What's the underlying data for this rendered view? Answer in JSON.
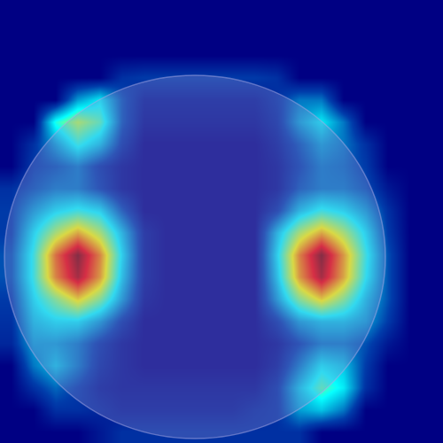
{
  "chart_data": {
    "type": "heatmap",
    "tick_labels": false,
    "z": [
      [
        0,
        0,
        0,
        0,
        0,
        0,
        0,
        0,
        0,
        0,
        0,
        0,
        0,
        0,
        0,
        0,
        0,
        0,
        0,
        0
      ],
      [
        0,
        0,
        0,
        0,
        0,
        0,
        0,
        0,
        0,
        0,
        0,
        0,
        0,
        0,
        0,
        0,
        0,
        0,
        0,
        0
      ],
      [
        0,
        0,
        0,
        0,
        0,
        0,
        0,
        0,
        0,
        0,
        0,
        0,
        0,
        0,
        0,
        0,
        0,
        0,
        0,
        0
      ],
      [
        0,
        0,
        0,
        0,
        0,
        0.1,
        0.12,
        0.12,
        0.12,
        0.12,
        0.12,
        0.12,
        0.1,
        0,
        0,
        0,
        0,
        0,
        0,
        0
      ],
      [
        0,
        0,
        0,
        0.25,
        0.35,
        0.15,
        0.05,
        0.05,
        0.05,
        0.05,
        0.05,
        0.05,
        0.1,
        0.2,
        0.2,
        0,
        0,
        0,
        0,
        0
      ],
      [
        0,
        0,
        0.4,
        0.55,
        0.45,
        0.15,
        0.03,
        0.03,
        0.03,
        0.03,
        0.03,
        0.03,
        0.08,
        0.25,
        0.35,
        0.2,
        0,
        0,
        0,
        0
      ],
      [
        0,
        0.1,
        0.25,
        0.4,
        0.3,
        0.1,
        0,
        0,
        0,
        0,
        0,
        0,
        0.05,
        0.15,
        0.25,
        0.2,
        0.1,
        0,
        0,
        0
      ],
      [
        0,
        0.12,
        0.15,
        0.2,
        0.1,
        0.03,
        0,
        0,
        0,
        0,
        0,
        0,
        0.03,
        0.12,
        0.2,
        0.18,
        0.12,
        0,
        0,
        0
      ],
      [
        0.1,
        0.15,
        0.2,
        0.2,
        0.12,
        0.03,
        0,
        0,
        0,
        0,
        0,
        0,
        0.03,
        0.15,
        0.2,
        0.2,
        0.15,
        0.05,
        0,
        0
      ],
      [
        0.12,
        0.25,
        0.35,
        0.4,
        0.35,
        0.15,
        0,
        0,
        0,
        0,
        0,
        0,
        0.1,
        0.3,
        0.4,
        0.35,
        0.25,
        0.1,
        0,
        0
      ],
      [
        0.12,
        0.35,
        0.55,
        0.7,
        0.55,
        0.3,
        0.05,
        0,
        0,
        0,
        0,
        0,
        0.3,
        0.55,
        0.7,
        0.55,
        0.35,
        0.12,
        0,
        0
      ],
      [
        0.15,
        0.4,
        0.78,
        1.0,
        0.75,
        0.35,
        0.05,
        0,
        0,
        0,
        0,
        0,
        0.35,
        0.75,
        1.0,
        0.72,
        0.4,
        0.15,
        0,
        0
      ],
      [
        0.15,
        0.4,
        0.75,
        0.95,
        0.72,
        0.32,
        0.05,
        0,
        0,
        0,
        0,
        0,
        0.32,
        0.72,
        0.95,
        0.7,
        0.38,
        0.15,
        0,
        0
      ],
      [
        0.12,
        0.35,
        0.5,
        0.65,
        0.5,
        0.25,
        0.03,
        0,
        0,
        0,
        0,
        0,
        0.25,
        0.5,
        0.65,
        0.5,
        0.3,
        0.15,
        0,
        0
      ],
      [
        0.1,
        0.3,
        0.35,
        0.35,
        0.25,
        0.1,
        0,
        0,
        0,
        0,
        0,
        0,
        0.1,
        0.25,
        0.3,
        0.3,
        0.25,
        0.12,
        0,
        0
      ],
      [
        0.08,
        0.25,
        0.25,
        0.2,
        0.1,
        0.03,
        0,
        0,
        0,
        0,
        0,
        0,
        0.03,
        0.12,
        0.2,
        0.2,
        0.15,
        0.05,
        0,
        0
      ],
      [
        0,
        0.2,
        0.3,
        0.2,
        0.08,
        0.03,
        0,
        0,
        0,
        0,
        0,
        0,
        0.05,
        0.2,
        0.35,
        0.3,
        0.12,
        0,
        0,
        0
      ],
      [
        0,
        0.1,
        0.18,
        0.12,
        0.05,
        0.03,
        0.03,
        0.03,
        0.03,
        0.03,
        0.03,
        0.03,
        0.1,
        0.3,
        0.45,
        0.35,
        0.1,
        0,
        0,
        0
      ],
      [
        0,
        0,
        0.1,
        0.1,
        0.08,
        0.05,
        0.05,
        0.05,
        0.05,
        0.05,
        0.05,
        0.08,
        0.1,
        0.25,
        0.3,
        0.2,
        0,
        0,
        0,
        0
      ],
      [
        0,
        0,
        0,
        0,
        0.05,
        0.1,
        0.1,
        0.1,
        0.1,
        0.1,
        0.1,
        0.1,
        0.1,
        0.1,
        0,
        0,
        0,
        0,
        0,
        0
      ]
    ]
  }
}
